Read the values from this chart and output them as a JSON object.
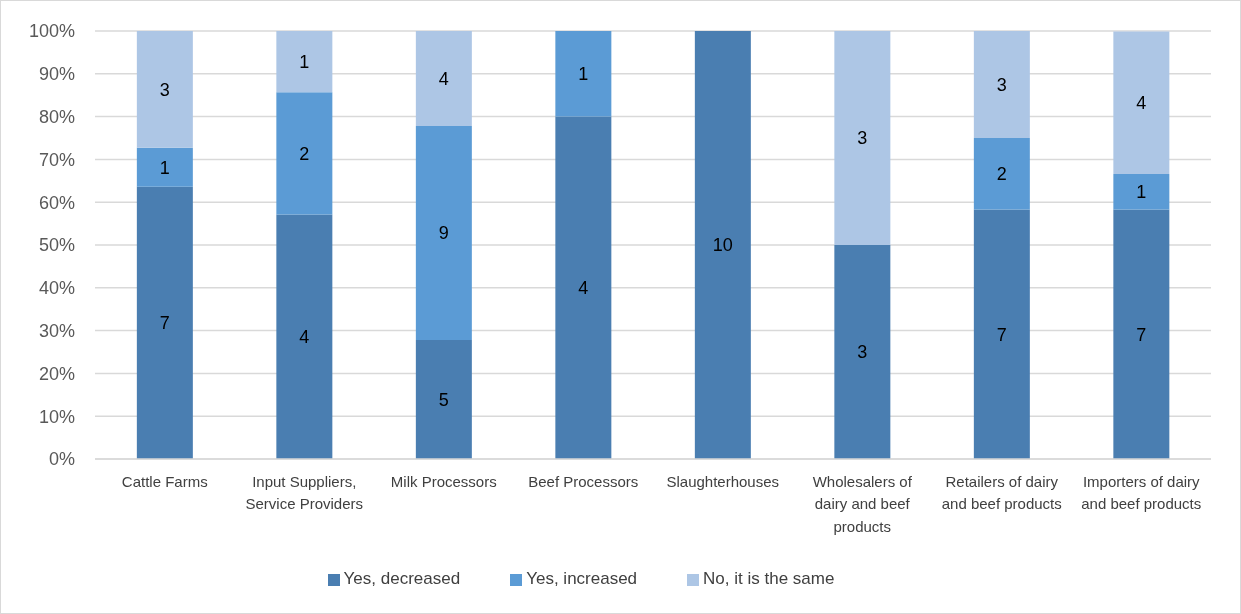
{
  "chart_data": {
    "type": "bar",
    "stacked": true,
    "categories": [
      "Cattle Farms",
      "Input Suppliers, Service Providers",
      "Milk Processors",
      "Beef Processors",
      "Slaughterhouses",
      "Wholesalers of dairy and beef products",
      "Retailers of dairy and beef products",
      "Importers of dairy and beef products"
    ],
    "series": [
      {
        "name": "Yes, decreased",
        "color": "#4a7eb1",
        "values": [
          63.6,
          57.1,
          27.8,
          80,
          100,
          50,
          58.3,
          58.3
        ]
      },
      {
        "name": "Yes, increased",
        "color": "#5b9bd5",
        "values": [
          9.1,
          28.6,
          50,
          20,
          0,
          0,
          16.7,
          8.3
        ]
      },
      {
        "name": "No, it is the same",
        "color": "#adc6e5",
        "values": [
          27.3,
          14.3,
          22.2,
          0,
          0,
          50,
          25,
          33.3
        ]
      }
    ],
    "annotations": [
      "7",
      "1",
      "3",
      "4",
      "2",
      "1",
      "5",
      "9",
      "4",
      "4",
      "1",
      "10",
      "3",
      "3",
      "7",
      "2",
      "3",
      "7",
      "1",
      "4"
    ],
    "ylim": [
      0,
      100
    ],
    "yticks": [
      {
        "value": 0,
        "label": "0%"
      },
      {
        "value": 10,
        "label": "10%"
      },
      {
        "value": 20,
        "label": "20%"
      },
      {
        "value": 30,
        "label": "30%"
      },
      {
        "value": 40,
        "label": "40%"
      },
      {
        "value": 50,
        "label": "50%"
      },
      {
        "value": 60,
        "label": "60%"
      },
      {
        "value": 70,
        "label": "70%"
      },
      {
        "value": 80,
        "label": "80%"
      },
      {
        "value": 90,
        "label": "90%"
      },
      {
        "value": 100,
        "label": "100%"
      }
    ],
    "grid": "y",
    "legend": "bottom"
  }
}
